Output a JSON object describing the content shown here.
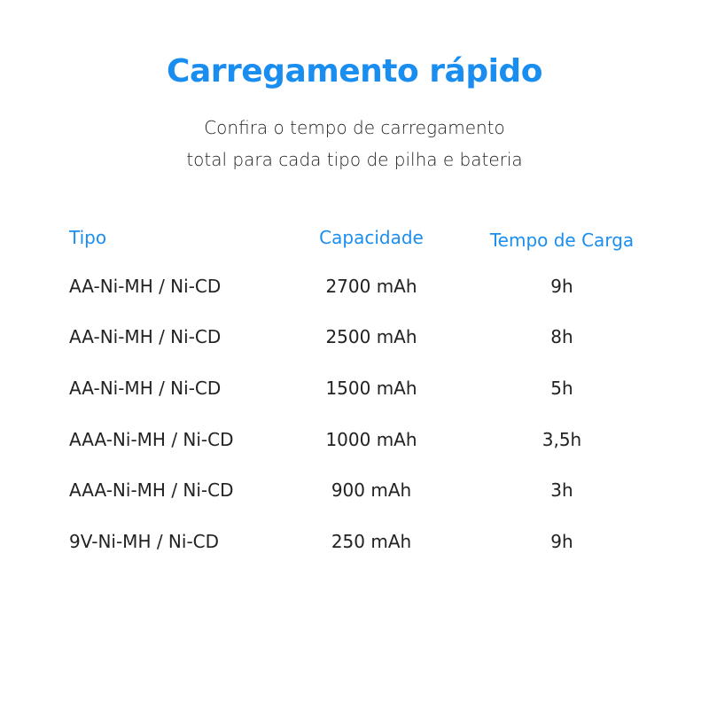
{
  "title": "Carregamento rápido",
  "subtitle": [
    "Confira o tempo de carregamento",
    "total para cada tipo de pilha e bateria"
  ],
  "accent_color": "#1a8ef0",
  "table": {
    "headers": [
      "Tipo",
      "Capacidade",
      "Tempo de Carga"
    ],
    "rows": [
      [
        "AA-Ni-MH / Ni-CD",
        "2700 mAh",
        "9h"
      ],
      [
        "AA-Ni-MH / Ni-CD",
        "2500 mAh",
        "8h"
      ],
      [
        "AA-Ni-MH / Ni-CD",
        "1500 mAh",
        "5h"
      ],
      [
        "AAA-Ni-MH / Ni-CD",
        "1000 mAh",
        "3,5h"
      ],
      [
        "AAA-Ni-MH / Ni-CD",
        "900 mAh",
        "3h"
      ],
      [
        "9V-Ni-MH / Ni-CD",
        "250 mAh",
        "9h"
      ]
    ]
  }
}
